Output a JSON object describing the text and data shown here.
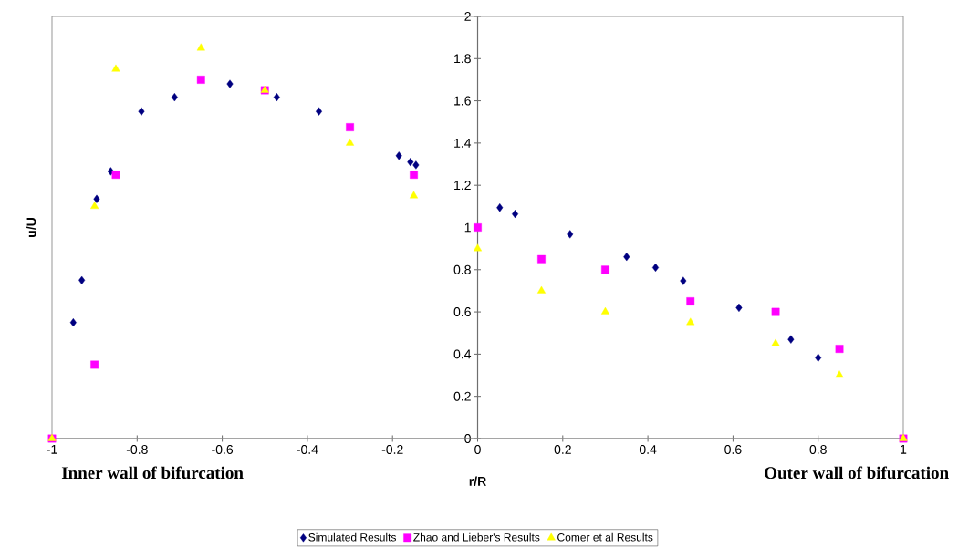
{
  "chart_data": {
    "type": "scatter",
    "xlabel": "r/R",
    "ylabel": "u/U",
    "xlim": [
      -1,
      1
    ],
    "ylim": [
      0,
      2
    ],
    "xticks": [
      -1,
      -0.8,
      -0.6,
      -0.4,
      -0.2,
      0,
      0.2,
      0.4,
      0.6,
      0.8,
      1
    ],
    "yticks": [
      0,
      0.2,
      0.4,
      0.6,
      0.8,
      1,
      1.2,
      1.4,
      1.6,
      1.8,
      2
    ],
    "legend": "bottom",
    "annotations": [
      "Inner wall of bifurcation",
      "Outer wall of bifurcation"
    ],
    "series": [
      {
        "name": "Simulated Results",
        "color": "#000080",
        "marker": "diamond",
        "x": [
          -0.95,
          -0.93,
          -0.895,
          -0.862,
          -0.79,
          -0.712,
          -0.582,
          -0.472,
          -0.373,
          -0.185,
          -0.158,
          -0.145,
          0.052,
          0.088,
          0.217,
          0.35,
          0.418,
          0.483,
          0.614,
          0.736,
          0.8
        ],
        "values": [
          0.55,
          0.75,
          1.135,
          1.266,
          1.55,
          1.617,
          1.68,
          1.617,
          1.55,
          1.34,
          1.31,
          1.296,
          1.094,
          1.064,
          0.968,
          0.861,
          0.81,
          0.747,
          0.62,
          0.47,
          0.383
        ]
      },
      {
        "name": "Zhao and Lieber's Results",
        "color": "#ff00ff",
        "marker": "square",
        "x": [
          -1,
          -0.9,
          -0.85,
          -0.65,
          -0.5,
          -0.3,
          -0.15,
          0,
          0.15,
          0.3,
          0.5,
          0.7,
          0.85,
          1
        ],
        "values": [
          0,
          0.35,
          1.25,
          1.7,
          1.65,
          1.475,
          1.25,
          1,
          0.85,
          0.8,
          0.65,
          0.6,
          0.425,
          0
        ]
      },
      {
        "name": "Comer et al Results",
        "color": "#ffff00",
        "marker": "triangle",
        "x": [
          -1,
          -0.9,
          -0.85,
          -0.65,
          -0.5,
          -0.3,
          -0.15,
          0,
          0.15,
          0.3,
          0.5,
          0.7,
          0.85,
          1
        ],
        "values": [
          0,
          1.1,
          1.75,
          1.85,
          1.65,
          1.4,
          1.15,
          0.9,
          0.7,
          0.6,
          0.55,
          0.45,
          0.3,
          0
        ]
      }
    ]
  }
}
